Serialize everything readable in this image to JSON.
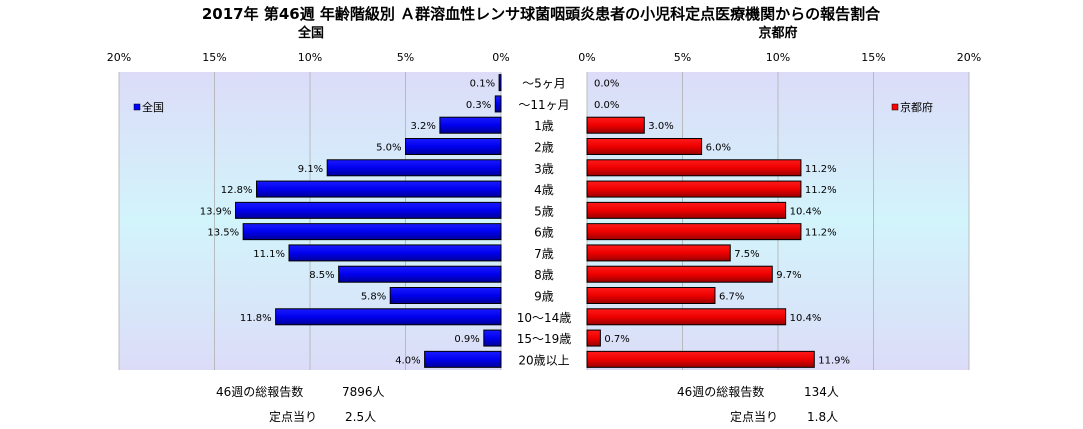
{
  "chart_data": {
    "type": "bar",
    "title": "2017年 第46週 年齢階級別 Ａ群溶血性レンサ球菌咽頭炎患者の小児科定点医療機関からの報告割合",
    "categories": [
      "～5ヶ月",
      "～11ヶ月",
      "1歳",
      "2歳",
      "3歳",
      "4歳",
      "5歳",
      "6歳",
      "7歳",
      "8歳",
      "9歳",
      "10～14歳",
      "15～19歳",
      "20歳以上"
    ],
    "left": {
      "subtitle": "全国",
      "legend": "全国",
      "color": "#0000ff",
      "values": [
        0.1,
        0.3,
        3.2,
        5.0,
        9.1,
        12.8,
        13.9,
        13.5,
        11.1,
        8.5,
        5.8,
        11.8,
        0.9,
        4.0
      ],
      "value_labels": [
        "0.1%",
        "0.3%",
        "3.2%",
        "5.0%",
        "9.1%",
        "12.8%",
        "13.9%",
        "13.5%",
        "11.1%",
        "8.5%",
        "5.8%",
        "11.8%",
        "0.9%",
        "4.0%"
      ],
      "xlim": [
        0,
        20
      ],
      "ticks": [
        "20%",
        "15%",
        "10%",
        "5%",
        "0%"
      ],
      "total_label": "46週の総報告数",
      "total_value": "7896人",
      "per_site_label": "定点当り",
      "per_site_value": "2.5人"
    },
    "right": {
      "subtitle": "京都府",
      "legend": "京都府",
      "color": "#ff0000",
      "values": [
        0.0,
        0.0,
        3.0,
        6.0,
        11.2,
        11.2,
        10.4,
        11.2,
        7.5,
        9.7,
        6.7,
        10.4,
        0.7,
        11.9
      ],
      "value_labels": [
        "0.0%",
        "0.0%",
        "3.0%",
        "6.0%",
        "11.2%",
        "11.2%",
        "10.4%",
        "11.2%",
        "7.5%",
        "9.7%",
        "6.7%",
        "10.4%",
        "0.7%",
        "11.9%"
      ],
      "xlim": [
        0,
        20
      ],
      "ticks": [
        "0%",
        "5%",
        "10%",
        "15%",
        "20%"
      ],
      "total_label": "46週の総報告数",
      "total_value": "134人",
      "per_site_label": "定点当り",
      "per_site_value": "1.8人"
    },
    "grid": true,
    "legend_placement_left": "top-left",
    "legend_placement_right": "top-right"
  }
}
